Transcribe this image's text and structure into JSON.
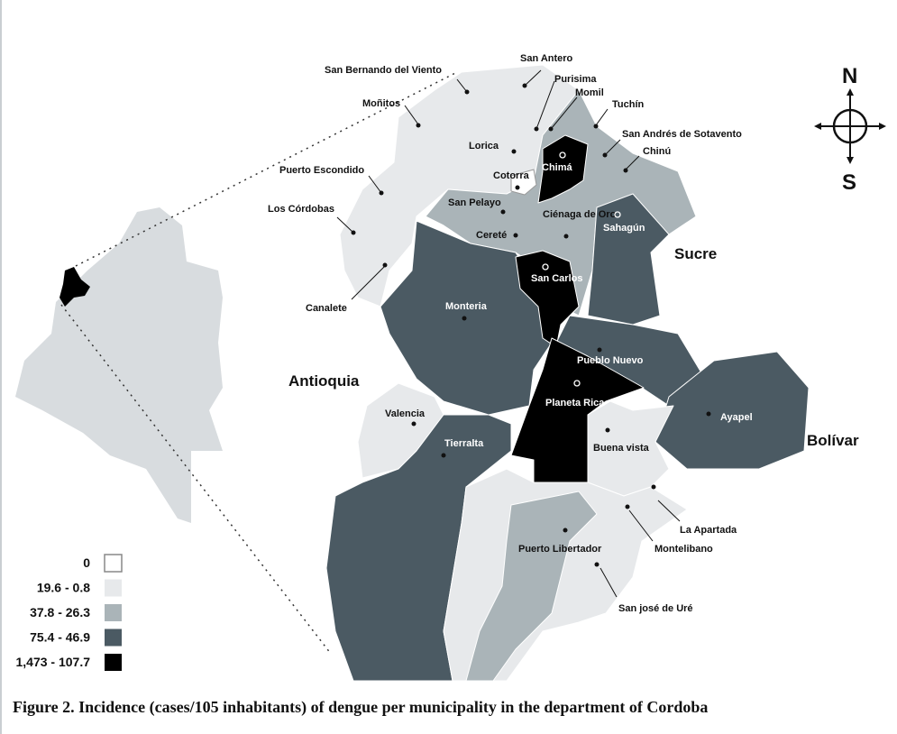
{
  "colors": {
    "c0": "#ffffff",
    "c1": "#e7e9eb",
    "c2": "#aab4b8",
    "c3": "#4b5a63",
    "c4": "#000000",
    "inset": "#d8dcdf"
  },
  "legend": {
    "items": [
      {
        "label": "0",
        "class": "c0"
      },
      {
        "label": "19.6 - 0.8",
        "class": "c1"
      },
      {
        "label": "37.8 - 26.3",
        "class": "c2"
      },
      {
        "label": "75.4 - 46.9",
        "class": "c3"
      },
      {
        "label": "1,473 - 107.7",
        "class": "c4"
      }
    ]
  },
  "compass": {
    "north": "N",
    "south": "S"
  },
  "neighbors": {
    "antioquia": "Antioquia",
    "sucre": "Sucre",
    "bolivar": "Bolívar"
  },
  "municipalities": [
    {
      "name": "San Bernando del Viento",
      "class": "c1"
    },
    {
      "name": "San Antero",
      "class": "c1"
    },
    {
      "name": "Purisima",
      "class": "c1"
    },
    {
      "name": "Momil",
      "class": "c2"
    },
    {
      "name": "Moñitos",
      "class": "c1"
    },
    {
      "name": "Tuchín",
      "class": "c2"
    },
    {
      "name": "San Andrés de Sotavento",
      "class": "c2"
    },
    {
      "name": "Chinú",
      "class": "c2"
    },
    {
      "name": "Lorica",
      "class": "c1"
    },
    {
      "name": "Chimá",
      "class": "c4"
    },
    {
      "name": "Cotorra",
      "class": "c0"
    },
    {
      "name": "Puerto Escondido",
      "class": "c1"
    },
    {
      "name": "San Pelayo",
      "class": "c2"
    },
    {
      "name": "Ciénaga de Oro",
      "class": "c2"
    },
    {
      "name": "Sahagún",
      "class": "c3"
    },
    {
      "name": "Los Córdobas",
      "class": "c1"
    },
    {
      "name": "Cereté",
      "class": "c2"
    },
    {
      "name": "San Carlos",
      "class": "c4"
    },
    {
      "name": "Canalete",
      "class": "c1"
    },
    {
      "name": "Monteria",
      "class": "c3"
    },
    {
      "name": "Pueblo Nuevo",
      "class": "c3"
    },
    {
      "name": "Planeta Rica",
      "class": "c4"
    },
    {
      "name": "Ayapel",
      "class": "c3"
    },
    {
      "name": "Valencia",
      "class": "c1"
    },
    {
      "name": "Tierralta",
      "class": "c3"
    },
    {
      "name": "Buena vista",
      "class": "c1"
    },
    {
      "name": "La Apartada",
      "class": "c1"
    },
    {
      "name": "Montelibano",
      "class": "c1"
    },
    {
      "name": "Puerto Libertador",
      "class": "c2"
    },
    {
      "name": "San josé de Uré",
      "class": "c1"
    }
  ],
  "caption": "Figure 2. Incidence (cases/105 inhabitants) of dengue per municipality in the department of Cordoba"
}
